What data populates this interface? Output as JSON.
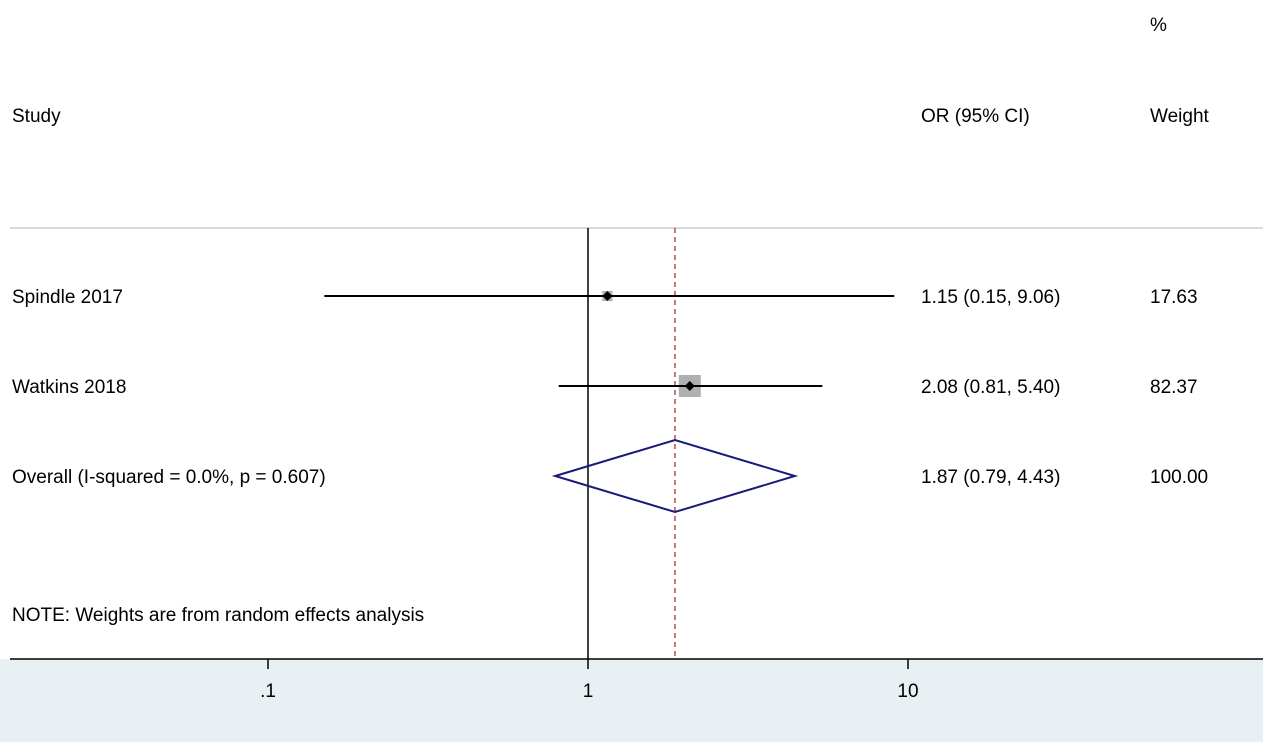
{
  "chart_data": {
    "type": "forest",
    "scale": "log",
    "columns": {
      "study_header": "Study",
      "or_header": "OR (95% CI)",
      "weight_header_top": "%",
      "weight_header": "Weight"
    },
    "studies": [
      {
        "label": "Spindle 2017",
        "or": 1.15,
        "lower": 0.15,
        "upper": 9.06,
        "or_text": "1.15 (0.15, 9.06)",
        "weight": 17.63,
        "weight_text": "17.63"
      },
      {
        "label": "Watkins 2018",
        "or": 2.08,
        "lower": 0.81,
        "upper": 5.4,
        "or_text": "2.08 (0.81, 5.40)",
        "weight": 82.37,
        "weight_text": "82.37"
      }
    ],
    "overall": {
      "label": "Overall  (I-squared = 0.0%, p = 0.607)",
      "or": 1.87,
      "lower": 0.79,
      "upper": 4.43,
      "or_text": "1.87 (0.79, 4.43)",
      "weight_text": "100.00"
    },
    "note": "NOTE: Weights are from random effects analysis",
    "x_ticks": [
      {
        "value": 0.1,
        "label": ".1"
      },
      {
        "value": 1,
        "label": "1"
      },
      {
        "value": 10,
        "label": "10"
      }
    ],
    "null_line": 1,
    "colors": {
      "diamond": "#1a1a7a",
      "reference_line": "#b03030",
      "weight_box": "#b0b0b0",
      "axis_band": "#e8f0f3"
    }
  }
}
